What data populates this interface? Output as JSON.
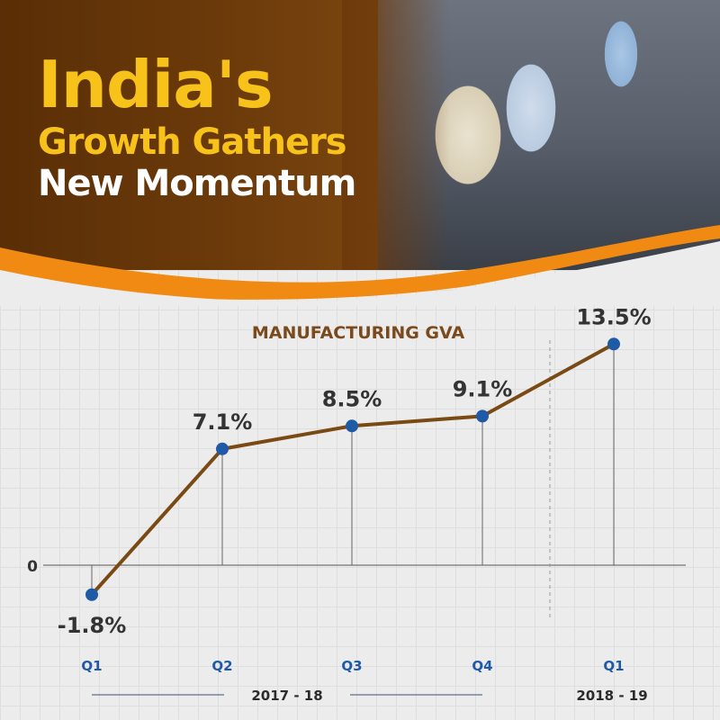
{
  "headline": {
    "line1": "India's",
    "line2": "Growth Gathers",
    "line3": "New Momentum"
  },
  "colors": {
    "accent": "#f7c21a",
    "line": "#7a4a14",
    "point": "#1f5aa6",
    "orange": "#f08a12"
  },
  "chart_data": {
    "type": "line",
    "title": "MANUFACTURING GVA",
    "categories": [
      "Q1",
      "Q2",
      "Q3",
      "Q4",
      "Q1"
    ],
    "values": [
      -1.8,
      7.1,
      8.5,
      9.1,
      13.5
    ],
    "value_labels": [
      "-1.8%",
      "7.1%",
      "8.5%",
      "9.1%",
      "13.5%"
    ],
    "zero_label": "0",
    "groups": [
      {
        "label": "2017 - 18",
        "categories": [
          0,
          3
        ]
      },
      {
        "label": "2018 - 19",
        "categories": [
          4,
          4
        ]
      }
    ]
  }
}
